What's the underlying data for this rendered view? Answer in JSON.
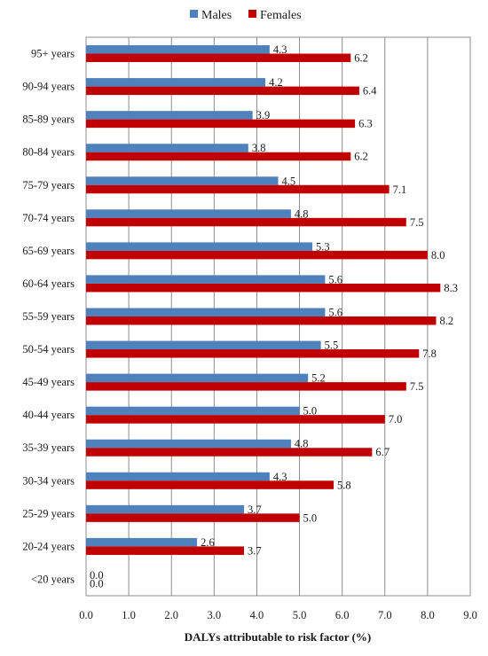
{
  "chart_data": {
    "type": "bar",
    "orientation": "horizontal",
    "categories": [
      "95+ years",
      "90-94 years",
      "85-89 years",
      "80-84 years",
      "75-79 years",
      "70-74 years",
      "65-69 years",
      "60-64 years",
      "55-59 years",
      "50-54 years",
      "45-49 years",
      "40-44 years",
      "35-39 years",
      "30-34 years",
      "25-29 years",
      "20-24 years",
      "<20 years"
    ],
    "series": [
      {
        "name": "Males",
        "color": "#4f81bd",
        "values": [
          4.3,
          4.2,
          3.9,
          3.8,
          4.5,
          4.8,
          5.3,
          5.6,
          5.6,
          5.5,
          5.2,
          5.0,
          4.8,
          4.3,
          3.7,
          2.6,
          0.0
        ]
      },
      {
        "name": "Females",
        "color": "#c00000",
        "values": [
          6.2,
          6.4,
          6.3,
          6.2,
          7.1,
          7.5,
          8.0,
          8.3,
          8.2,
          7.8,
          7.5,
          7.0,
          6.7,
          5.8,
          5.0,
          3.7,
          0.0
        ]
      }
    ],
    "xlabel": "DALYs attributable to risk factor (%)",
    "ylabel": "",
    "xlim": [
      0.0,
      9.0
    ],
    "xticks": [
      "0.0",
      "1.0",
      "2.0",
      "3.0",
      "4.0",
      "5.0",
      "6.0",
      "7.0",
      "8.0",
      "9.0"
    ],
    "grid": "vertical",
    "legend_position": "top"
  }
}
